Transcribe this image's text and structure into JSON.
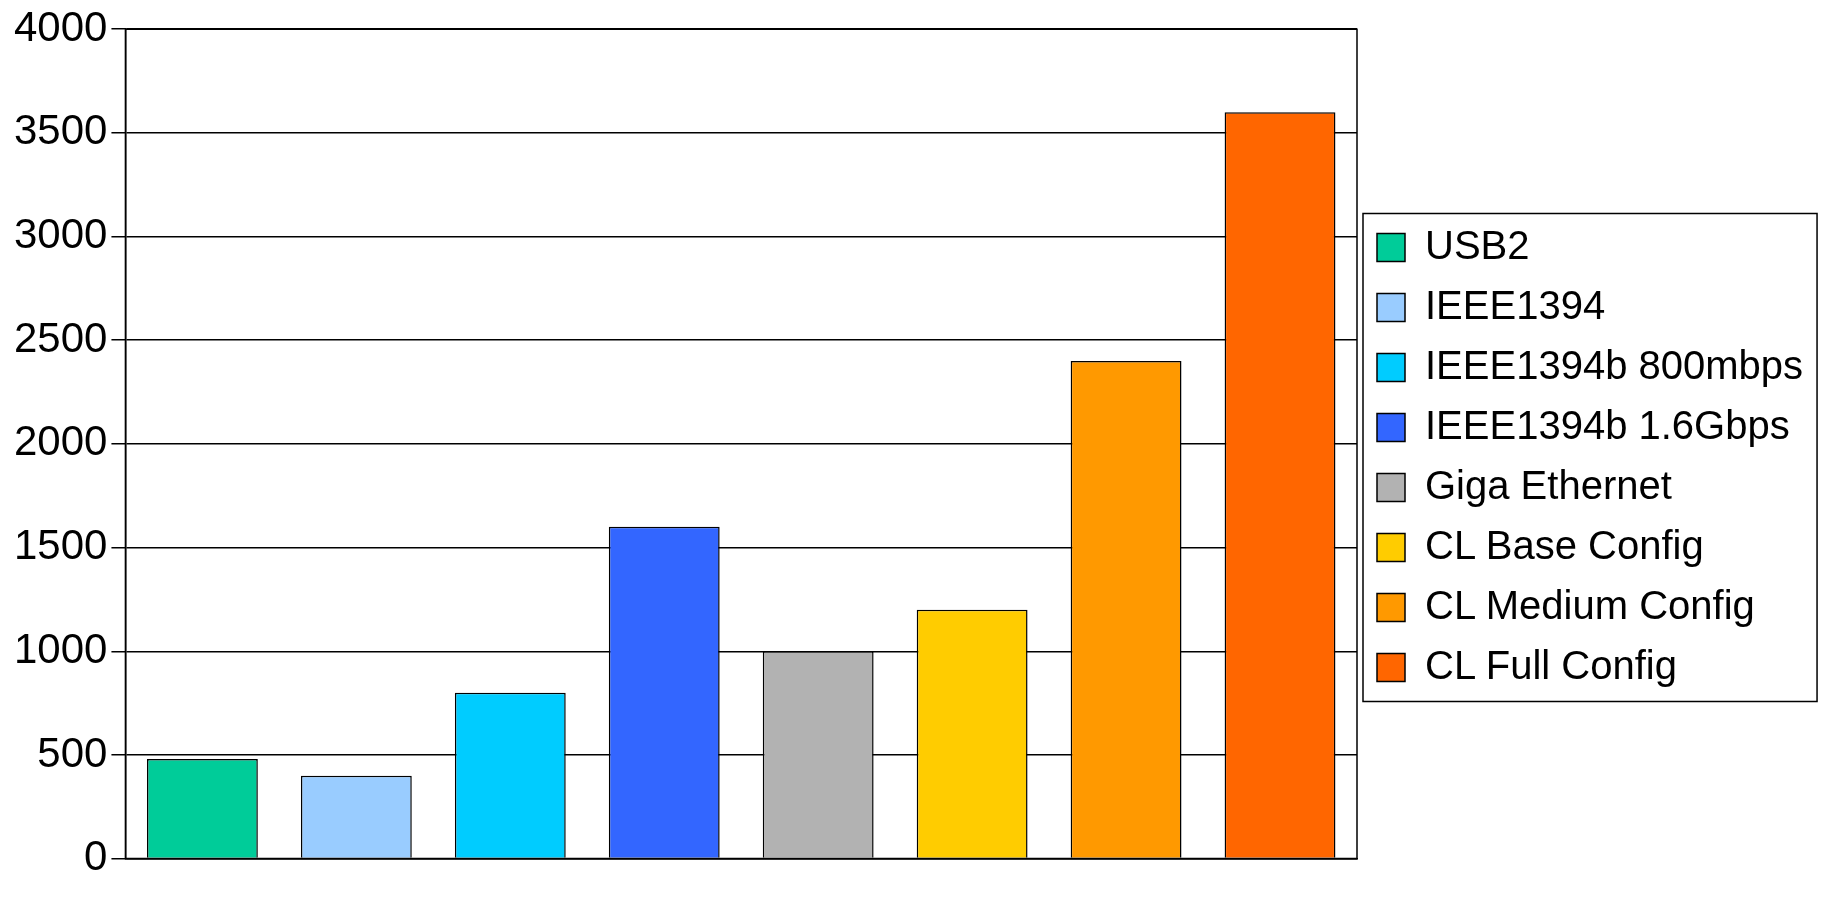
{
  "chart_data": {
    "type": "bar",
    "categories": [
      null,
      null,
      null,
      null,
      null,
      null,
      null,
      null
    ],
    "series": [
      {
        "name": "USB2",
        "color": "#00cc99",
        "values": [
          480,
          null,
          null,
          null,
          null,
          null,
          null,
          null
        ]
      },
      {
        "name": "IEEE1394",
        "color": "#99ccff",
        "values": [
          null,
          400,
          null,
          null,
          null,
          null,
          null,
          null
        ]
      },
      {
        "name": "IEEE1394b 800mbps",
        "color": "#00ccff",
        "values": [
          null,
          null,
          800,
          null,
          null,
          null,
          null,
          null
        ]
      },
      {
        "name": "IEEE1394b 1.6Gbps",
        "color": "#3366ff",
        "values": [
          null,
          null,
          null,
          1600,
          null,
          null,
          null,
          null
        ]
      },
      {
        "name": "Giga Ethernet",
        "color": "#b2b2b2",
        "values": [
          null,
          null,
          null,
          null,
          1000,
          null,
          null,
          null
        ]
      },
      {
        "name": "CL Base Config",
        "color": "#ffcc00",
        "values": [
          null,
          null,
          null,
          null,
          null,
          1200,
          null,
          null
        ]
      },
      {
        "name": "CL Medium Config",
        "color": "#ff9900",
        "values": [
          null,
          null,
          null,
          null,
          null,
          null,
          2400,
          null
        ]
      },
      {
        "name": "CL Full Config",
        "color": "#ff6600",
        "values": [
          null,
          null,
          null,
          null,
          null,
          null,
          null,
          3600
        ]
      }
    ],
    "ylim": [
      0,
      4000
    ],
    "yticks": [
      0,
      500,
      1000,
      1500,
      2000,
      2500,
      3000,
      3500,
      4000
    ],
    "grid": "y",
    "legend": "right"
  }
}
